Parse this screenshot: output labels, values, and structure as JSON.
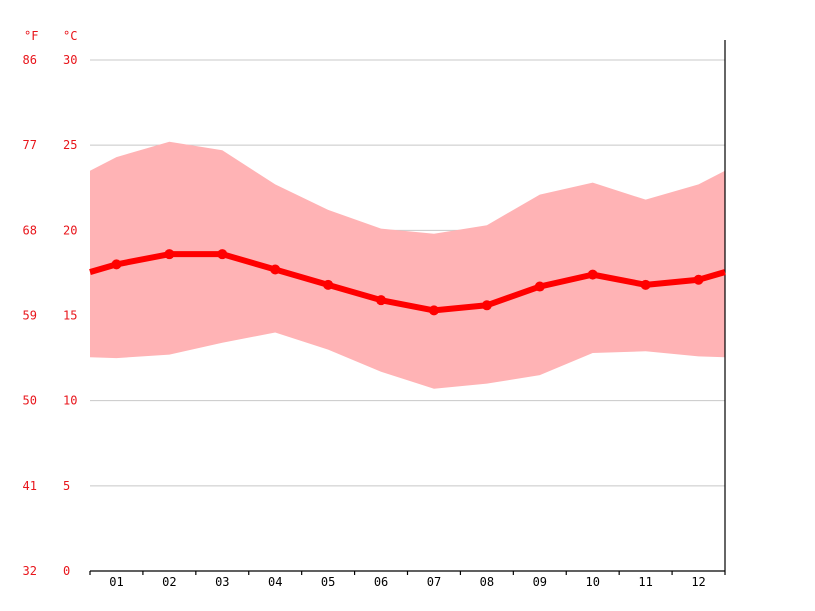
{
  "chart_data": {
    "type": "area",
    "units": {
      "fahrenheit": "°F",
      "celsius": "°C"
    },
    "months": [
      "01",
      "02",
      "03",
      "04",
      "05",
      "06",
      "07",
      "08",
      "09",
      "10",
      "11",
      "12"
    ],
    "y_ticks_c": [
      0,
      5,
      10,
      15,
      20,
      25,
      30
    ],
    "y_ticks_f": [
      32,
      41,
      50,
      59,
      68,
      77,
      86
    ],
    "ylim_c": [
      0,
      30
    ],
    "grid": true,
    "series": [
      {
        "role": "mean",
        "values": [
          18.0,
          18.6,
          18.6,
          17.7,
          16.8,
          15.9,
          15.3,
          15.6,
          16.7,
          17.4,
          16.8,
          17.1
        ]
      },
      {
        "role": "max",
        "values": [
          24.3,
          25.2,
          24.7,
          22.7,
          21.2,
          20.1,
          19.8,
          20.3,
          22.1,
          22.8,
          21.8,
          22.7
        ]
      },
      {
        "role": "min",
        "values": [
          12.5,
          12.7,
          13.4,
          14.0,
          13.0,
          11.7,
          10.7,
          11.0,
          11.5,
          12.8,
          12.9,
          12.6
        ]
      }
    ],
    "colors": {
      "mean": "#ff0000",
      "range": "#ffb3b5",
      "ticks": "#e8151b",
      "grid": "#c8c8c8"
    }
  }
}
